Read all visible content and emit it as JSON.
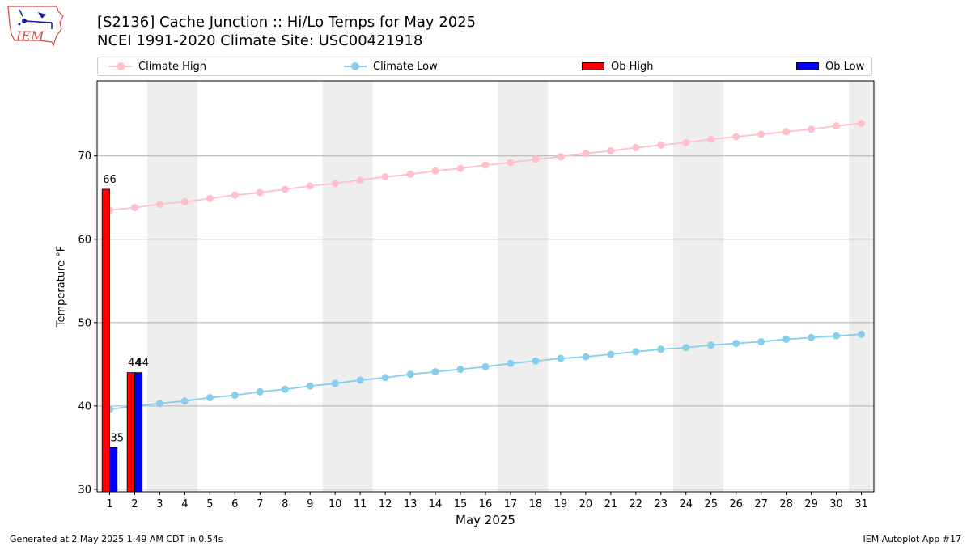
{
  "header": {
    "logo_text": "IEM",
    "title_line1": "[S2136] Cache Junction :: Hi/Lo Temps for May 2025",
    "title_line2": "NCEI 1991-2020 Climate Site: USC00421918"
  },
  "legend": {
    "items": [
      {
        "label": "Climate High",
        "kind": "line",
        "color": "#ffc0cb"
      },
      {
        "label": "Climate Low",
        "kind": "line",
        "color": "#87ceeb"
      },
      {
        "label": "Ob High",
        "kind": "bar",
        "color": "#ff0000"
      },
      {
        "label": "Ob Low",
        "kind": "bar",
        "color": "#0000ff"
      }
    ]
  },
  "footer": {
    "left": "Generated at 2 May 2025 1:49 AM CDT in 0.54s",
    "right": "IEM Autoplot App #17"
  },
  "chart_data": {
    "type": "bar",
    "xlabel": "May 2025",
    "ylabel": "Temperature °F",
    "xlim": [
      0.5,
      31.5
    ],
    "ylim": [
      29.7,
      79
    ],
    "y_ticks": [
      30,
      40,
      50,
      60,
      70
    ],
    "x": [
      1,
      2,
      3,
      4,
      5,
      6,
      7,
      8,
      9,
      10,
      11,
      12,
      13,
      14,
      15,
      16,
      17,
      18,
      19,
      20,
      21,
      22,
      23,
      24,
      25,
      26,
      27,
      28,
      29,
      30,
      31
    ],
    "grid": "horizontal",
    "legend_position": "top",
    "weekend_shading": [
      [
        3,
        4
      ],
      [
        10,
        11
      ],
      [
        17,
        18
      ],
      [
        24,
        25
      ],
      [
        31,
        31
      ]
    ],
    "series": [
      {
        "name": "Climate High",
        "kind": "line",
        "color": "#ffc0cb",
        "values": [
          63.5,
          63.8,
          64.2,
          64.5,
          64.9,
          65.3,
          65.6,
          66.0,
          66.4,
          66.7,
          67.1,
          67.5,
          67.8,
          68.2,
          68.5,
          68.9,
          69.2,
          69.6,
          69.9,
          70.3,
          70.6,
          71.0,
          71.3,
          71.6,
          72.0,
          72.3,
          72.6,
          72.9,
          73.2,
          73.6,
          73.9
        ]
      },
      {
        "name": "Climate Low",
        "kind": "line",
        "color": "#87ceeb",
        "values": [
          39.6,
          40.0,
          40.3,
          40.6,
          41.0,
          41.3,
          41.7,
          42.0,
          42.4,
          42.7,
          43.1,
          43.4,
          43.8,
          44.1,
          44.4,
          44.7,
          45.1,
          45.4,
          45.7,
          45.9,
          46.2,
          46.5,
          46.8,
          47.0,
          47.3,
          47.5,
          47.7,
          48.0,
          48.2,
          48.4,
          48.6
        ]
      },
      {
        "name": "Ob High",
        "kind": "bar",
        "color": "#ff0000",
        "x": [
          1,
          2
        ],
        "values": [
          66,
          44
        ],
        "labels": [
          "66",
          "44"
        ]
      },
      {
        "name": "Ob Low",
        "kind": "bar",
        "color": "#0000ff",
        "x": [
          1,
          2
        ],
        "values": [
          35,
          44
        ],
        "labels": [
          "35",
          "44"
        ]
      }
    ]
  }
}
